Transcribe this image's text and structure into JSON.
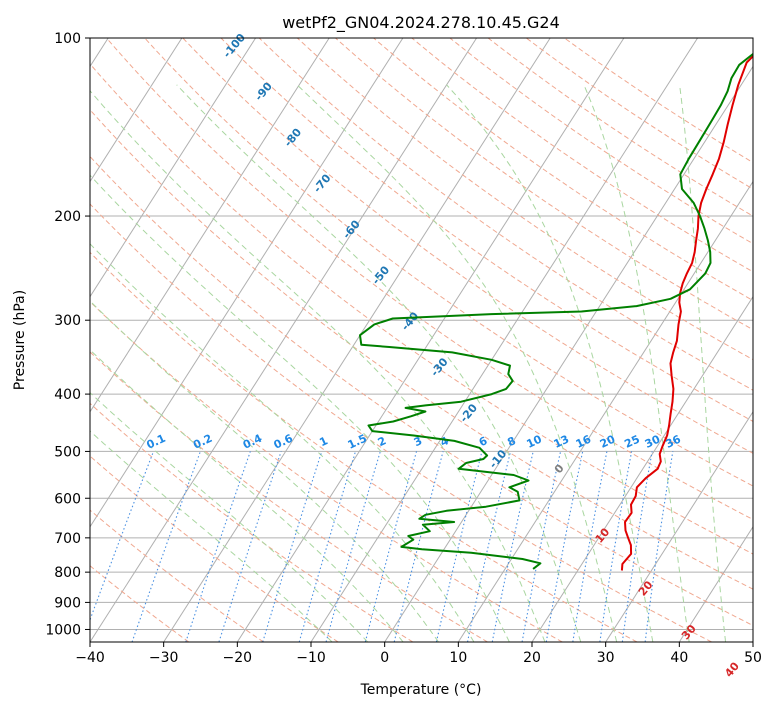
{
  "chart_data": {
    "type": "line",
    "title": "wetPf2_GN04.2024.278.10.45.G24",
    "xlabel": "Temperature (°C)",
    "ylabel": "Pressure (hPa)",
    "xlim": [
      -40,
      50
    ],
    "ylim": [
      1050,
      100
    ],
    "y_scale": "log",
    "xticks": [
      -40,
      -30,
      -20,
      -10,
      0,
      10,
      20,
      30,
      40,
      50
    ],
    "yticks": [
      100,
      200,
      300,
      400,
      500,
      600,
      700,
      800,
      900,
      1000
    ],
    "grid": true,
    "series": [
      {
        "key": "temperature",
        "color": "#e00000",
        "points": [
          [
            26.0,
            795
          ],
          [
            25.5,
            775
          ],
          [
            25.8,
            745
          ],
          [
            25.0,
            720
          ],
          [
            24.0,
            700
          ],
          [
            23.0,
            680
          ],
          [
            22.2,
            658
          ],
          [
            22.3,
            635
          ],
          [
            21.5,
            615
          ],
          [
            21.4,
            595
          ],
          [
            20.8,
            575
          ],
          [
            21.2,
            555
          ],
          [
            22.0,
            535
          ],
          [
            21.8,
            520
          ],
          [
            21.0,
            505
          ],
          [
            20.7,
            490
          ],
          [
            20.4,
            470
          ],
          [
            19.8,
            452
          ],
          [
            19.0,
            432
          ],
          [
            18.2,
            412
          ],
          [
            17.2,
            392
          ],
          [
            15.8,
            372
          ],
          [
            14.6,
            355
          ],
          [
            14.0,
            340
          ],
          [
            13.5,
            325
          ],
          [
            12.3,
            305
          ],
          [
            11.5,
            290
          ],
          [
            10.5,
            280
          ],
          [
            9.8,
            270
          ],
          [
            9.3,
            260
          ],
          [
            9.0,
            250
          ],
          [
            8.8,
            240
          ],
          [
            8.2,
            230
          ],
          [
            7.4,
            220
          ],
          [
            6.6,
            210
          ],
          [
            5.6,
            200
          ],
          [
            4.8,
            190
          ],
          [
            4.3,
            180
          ],
          [
            3.9,
            170
          ],
          [
            3.4,
            160
          ],
          [
            2.6,
            150
          ],
          [
            1.6,
            140
          ],
          [
            0.6,
            130
          ],
          [
            -0.4,
            120
          ],
          [
            -1.2,
            110
          ],
          [
            -0.5,
            104
          ],
          [
            0.6,
            100
          ]
        ]
      },
      {
        "key": "dewpoint",
        "color": "#008000",
        "points": [
          [
            13.8,
            790
          ],
          [
            14.3,
            773
          ],
          [
            11.5,
            760
          ],
          [
            4.0,
            742
          ],
          [
            -3.0,
            732
          ],
          [
            -6.0,
            725
          ],
          [
            -5.0,
            705
          ],
          [
            -6.0,
            695
          ],
          [
            -3.5,
            682
          ],
          [
            -5.0,
            665
          ],
          [
            -1.0,
            658
          ],
          [
            -6.0,
            650
          ],
          [
            -5.5,
            640
          ],
          [
            -3.0,
            630
          ],
          [
            2.0,
            620
          ],
          [
            6.0,
            605
          ],
          [
            5.0,
            585
          ],
          [
            3.5,
            575
          ],
          [
            5.5,
            560
          ],
          [
            3.0,
            548
          ],
          [
            -5.0,
            535
          ],
          [
            -4.5,
            523
          ],
          [
            -2.5,
            515
          ],
          [
            -2.3,
            508
          ],
          [
            -4.0,
            493
          ],
          [
            -8.0,
            480
          ],
          [
            -14.0,
            470
          ],
          [
            -20.0,
            462
          ],
          [
            -21.0,
            452
          ],
          [
            -18.0,
            445
          ],
          [
            -16.0,
            436
          ],
          [
            -14.5,
            428
          ],
          [
            -17.5,
            422
          ],
          [
            -15.0,
            418
          ],
          [
            -10.5,
            412
          ],
          [
            -7.0,
            400
          ],
          [
            -5.5,
            392
          ],
          [
            -5.3,
            380
          ],
          [
            -6.5,
            370
          ],
          [
            -7.0,
            358
          ],
          [
            -10.0,
            350
          ],
          [
            -16.0,
            340
          ],
          [
            -25.0,
            333
          ],
          [
            -29.0,
            330
          ],
          [
            -30.0,
            318
          ],
          [
            -29.0,
            305
          ],
          [
            -27.0,
            298
          ],
          [
            -14.0,
            293
          ],
          [
            -2.0,
            290
          ],
          [
            5.0,
            284
          ],
          [
            9.0,
            276
          ],
          [
            10.8,
            266
          ],
          [
            11.5,
            250
          ],
          [
            11.3,
            240
          ],
          [
            10.3,
            230
          ],
          [
            9.0,
            220
          ],
          [
            7.5,
            210
          ],
          [
            5.8,
            200
          ],
          [
            3.8,
            190
          ],
          [
            1.0,
            180
          ],
          [
            -0.5,
            170
          ],
          [
            -0.7,
            160
          ],
          [
            -0.8,
            148
          ],
          [
            -0.9,
            137
          ],
          [
            -1.0,
            130
          ],
          [
            -1.3,
            123
          ],
          [
            -1.9,
            117
          ],
          [
            -2.0,
            111
          ],
          [
            -1.0,
            106
          ],
          [
            0.5,
            101
          ]
        ]
      }
    ],
    "dry_adiabat_labels": [
      "-100",
      "-90",
      "-80",
      "-70",
      "-60",
      "-50",
      "-40",
      "-30",
      "-20",
      "-10",
      "0",
      "10",
      "20",
      "30",
      "40"
    ],
    "mixing_ratio_labels": [
      "0.1",
      "0.2",
      "0.4",
      "0.6",
      "1",
      "1.5",
      "2",
      "3",
      "4",
      "6",
      "8",
      "10",
      "13",
      "16",
      "20",
      "25",
      "30",
      "36"
    ]
  }
}
